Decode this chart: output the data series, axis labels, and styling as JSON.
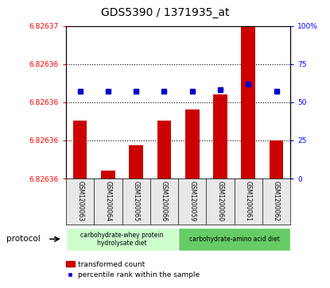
{
  "title": "GDS5390 / 1371935_at",
  "samples": [
    "GSM1200063",
    "GSM1200064",
    "GSM1200065",
    "GSM1200066",
    "GSM1200059",
    "GSM1200060",
    "GSM1200061",
    "GSM1200062"
  ],
  "bar_values_pct": [
    38,
    5,
    22,
    38,
    45,
    55,
    100,
    25
  ],
  "percentile_values": [
    57,
    57,
    57,
    57,
    57,
    58,
    62,
    57
  ],
  "ylim_right": [
    0,
    100
  ],
  "yticks_left_labels": [
    "6.82636",
    "6.82636",
    "6.82636",
    "6.82636",
    "6.82637"
  ],
  "yticks_right": [
    0,
    25,
    50,
    75,
    100
  ],
  "ytick_labels_right": [
    "0",
    "25",
    "50",
    "75",
    "100%"
  ],
  "bar_color": "#cc0000",
  "dot_color": "#0000cc",
  "group1_label": "carbohydrate-whey protein\nhydrolysate diet",
  "group2_label": "carbohydrate-amino acid diet",
  "group1_color": "#ccffcc",
  "group2_color": "#66cc66",
  "protocol_label": "protocol",
  "legend_bar_label": "transformed count",
  "legend_dot_label": "percentile rank within the sample",
  "bg_color": "#e8e8e8",
  "plot_bg": "#ffffff"
}
